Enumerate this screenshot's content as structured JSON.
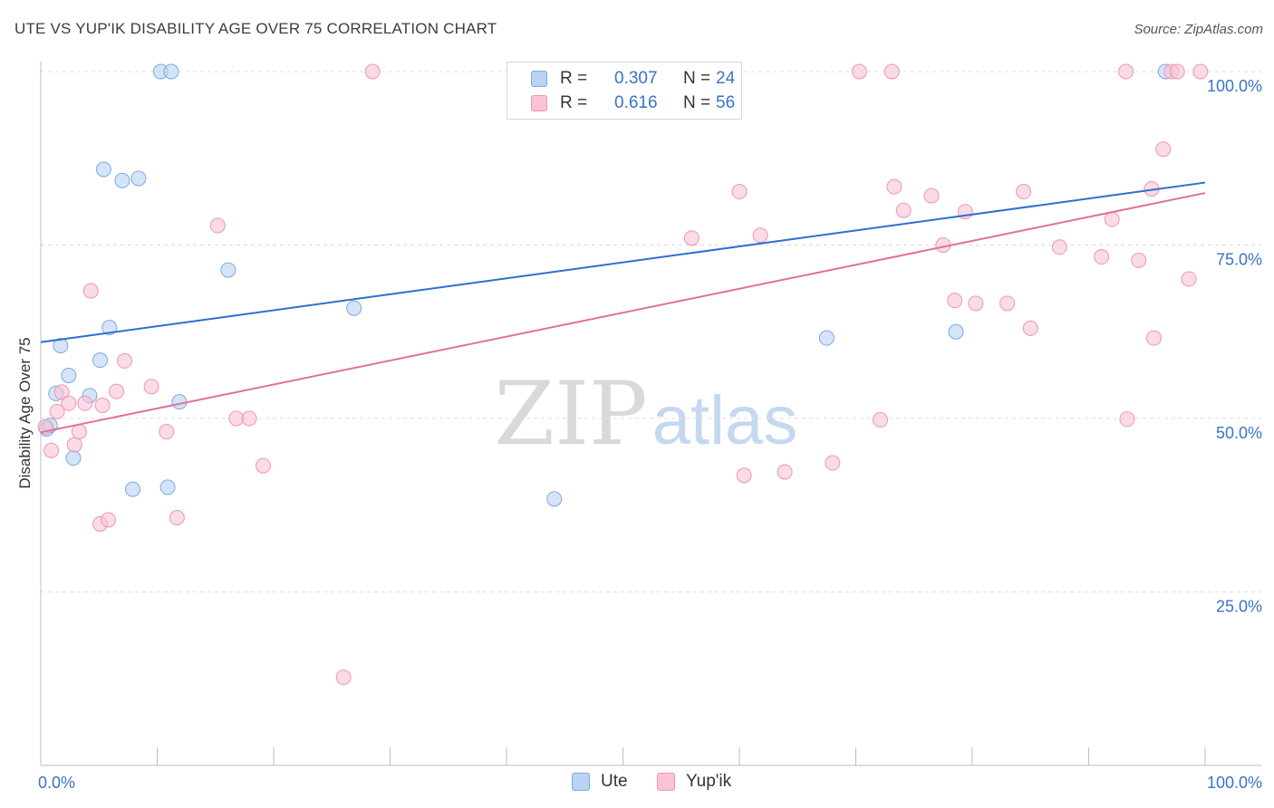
{
  "title": "UTE VS YUP'IK DISABILITY AGE OVER 75 CORRELATION CHART",
  "source": "Source: ZipAtlas.com",
  "watermark": {
    "zip": "ZIP",
    "atlas": "atlas"
  },
  "legend": {
    "r_label": "R = ",
    "n_label": "N = ",
    "rows": [
      {
        "r": "0.307",
        "n": "24",
        "fill": "#b9d3f3",
        "stroke": "#7ea8df"
      },
      {
        "r": "0.616",
        "n": "56",
        "fill": "#f9c3d4",
        "stroke": "#ee95b3"
      }
    ]
  },
  "chart_data": {
    "type": "scatter",
    "xlabel": "",
    "ylabel": "Disability Age Over 75",
    "xlim": [
      0,
      100
    ],
    "ylim": [
      0,
      100
    ],
    "x_tick_labels": [
      "0.0%",
      "100.0%"
    ],
    "y_tick_labels": [
      {
        "value": 100,
        "label": "100.0%"
      },
      {
        "value": 75,
        "label": "75.0%"
      },
      {
        "value": 50,
        "label": "50.0%"
      },
      {
        "value": 25,
        "label": "25.0%"
      }
    ],
    "grid": true,
    "legend_position": "top-center",
    "series": [
      {
        "name": "Ute",
        "color": "#7ea8df",
        "fill": "#b9d3f3",
        "line_color": "#2e6fcd",
        "trend": [
          [
            0,
            61.0
          ],
          [
            100,
            84.0
          ]
        ],
        "points": [
          [
            0.5,
            48.5
          ],
          [
            0.8,
            49
          ],
          [
            1.7,
            60.5
          ],
          [
            2.4,
            56.2
          ],
          [
            1.3,
            53.6
          ],
          [
            2.8,
            44.3
          ],
          [
            4.2,
            53.3
          ],
          [
            5.1,
            58.4
          ],
          [
            5.4,
            85.9
          ],
          [
            5.9,
            63.1
          ],
          [
            7.0,
            84.3
          ],
          [
            7.9,
            39.8
          ],
          [
            8.4,
            84.6
          ],
          [
            10.3,
            100
          ],
          [
            11.2,
            100
          ],
          [
            10.9,
            40.1
          ],
          [
            11.9,
            52.4
          ],
          [
            16.1,
            71.4
          ],
          [
            26.9,
            65.9
          ],
          [
            44.1,
            38.4
          ],
          [
            58.4,
            100
          ],
          [
            67.5,
            61.6
          ],
          [
            78.6,
            62.5
          ],
          [
            96.6,
            100
          ]
        ]
      },
      {
        "name": "Yup'ik",
        "color": "#ee95b3",
        "fill": "#f9c3d4",
        "line_color": "#e0709a",
        "trend": [
          [
            0,
            48.0
          ],
          [
            100,
            82.5
          ]
        ],
        "points": [
          [
            0.4,
            48.8
          ],
          [
            0.9,
            45.4
          ],
          [
            1.4,
            51.0
          ],
          [
            1.8,
            53.8
          ],
          [
            2.4,
            52.2
          ],
          [
            2.9,
            46.2
          ],
          [
            3.3,
            48.1
          ],
          [
            3.8,
            52.2
          ],
          [
            4.3,
            68.4
          ],
          [
            5.1,
            34.8
          ],
          [
            5.3,
            51.9
          ],
          [
            5.8,
            35.4
          ],
          [
            6.5,
            53.9
          ],
          [
            7.2,
            58.3
          ],
          [
            9.5,
            54.6
          ],
          [
            10.8,
            48.1
          ],
          [
            11.7,
            35.7
          ],
          [
            15.2,
            77.8
          ],
          [
            16.8,
            50.0
          ],
          [
            17.9,
            50.0
          ],
          [
            19.1,
            43.2
          ],
          [
            26.0,
            12.7
          ],
          [
            28.5,
            100
          ],
          [
            55.9,
            76.0
          ],
          [
            58.8,
            100
          ],
          [
            60.0,
            82.7
          ],
          [
            60.4,
            41.8
          ],
          [
            61.8,
            76.4
          ],
          [
            63.9,
            42.3
          ],
          [
            68.0,
            43.6
          ],
          [
            70.3,
            100
          ],
          [
            72.1,
            49.8
          ],
          [
            73.1,
            100
          ],
          [
            73.3,
            83.4
          ],
          [
            74.1,
            80.0
          ],
          [
            76.5,
            82.1
          ],
          [
            77.5,
            75.0
          ],
          [
            78.5,
            67.0
          ],
          [
            79.4,
            79.8
          ],
          [
            80.3,
            66.6
          ],
          [
            83.0,
            66.6
          ],
          [
            84.4,
            82.7
          ],
          [
            85.0,
            63.0
          ],
          [
            87.5,
            74.7
          ],
          [
            91.1,
            73.3
          ],
          [
            92.0,
            78.7
          ],
          [
            93.2,
            100
          ],
          [
            93.3,
            49.9
          ],
          [
            94.3,
            72.8
          ],
          [
            95.4,
            83.1
          ],
          [
            95.6,
            61.6
          ],
          [
            96.4,
            88.8
          ],
          [
            97.1,
            100
          ],
          [
            97.6,
            100
          ],
          [
            98.6,
            70.1
          ],
          [
            99.6,
            100
          ]
        ]
      }
    ]
  }
}
